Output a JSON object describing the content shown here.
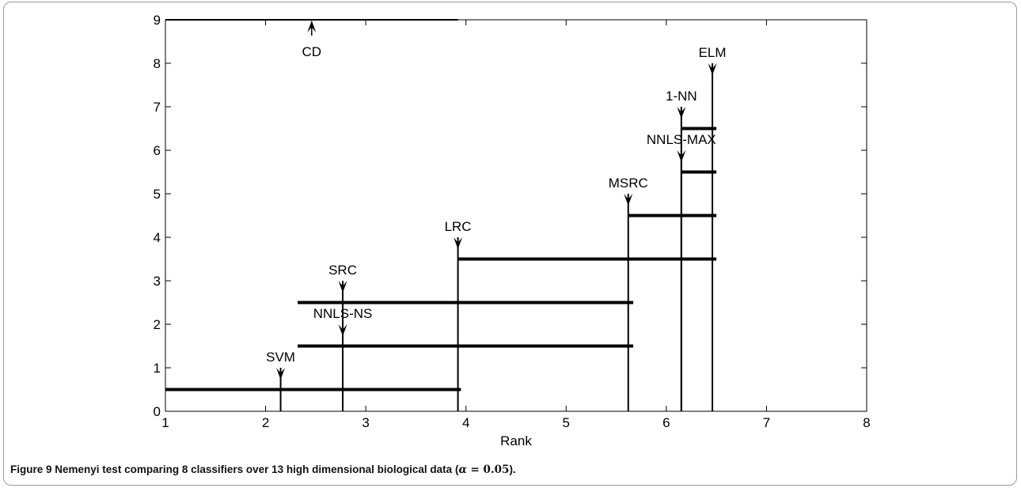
{
  "chart_data": {
    "type": "critical-difference",
    "xlabel": "Rank",
    "xlim": [
      1,
      8
    ],
    "ylim": [
      0,
      9
    ],
    "x_ticks": [
      1,
      2,
      3,
      4,
      5,
      6,
      7,
      8
    ],
    "y_ticks": [
      0,
      1,
      2,
      3,
      4,
      5,
      6,
      7,
      8,
      9
    ],
    "grid": false,
    "critical_difference": {
      "label": "CD",
      "x_start": 1.0,
      "x_end": 3.92,
      "y": 9
    },
    "classifiers": [
      {
        "name": "SVM",
        "rank": 2.15,
        "top": 1
      },
      {
        "name": "NNLS-NS",
        "rank": 2.77,
        "top": 2
      },
      {
        "name": "SRC",
        "rank": 2.77,
        "top": 3
      },
      {
        "name": "LRC",
        "rank": 3.92,
        "top": 4
      },
      {
        "name": "MSRC",
        "rank": 5.62,
        "top": 5
      },
      {
        "name": "NNLS-MAX",
        "rank": 6.15,
        "top": 6
      },
      {
        "name": "1-NN",
        "rank": 6.15,
        "top": 7
      },
      {
        "name": "ELM",
        "rank": 6.46,
        "top": 8
      }
    ],
    "cd_bars": [
      {
        "y": 0.5,
        "x_start": 1.0,
        "x_end": 3.95
      },
      {
        "y": 1.5,
        "x_start": 2.32,
        "x_end": 5.67
      },
      {
        "y": 2.5,
        "x_start": 2.32,
        "x_end": 5.67
      },
      {
        "y": 3.5,
        "x_start": 3.92,
        "x_end": 6.5
      },
      {
        "y": 4.5,
        "x_start": 5.62,
        "x_end": 6.5
      },
      {
        "y": 5.5,
        "x_start": 6.15,
        "x_end": 6.5
      },
      {
        "y": 6.5,
        "x_start": 6.15,
        "x_end": 6.5
      }
    ]
  },
  "caption": {
    "lead": "Figure 9",
    "text": "Nemenyi test comparing 8 classifiers over 13 high dimensional biological data (",
    "alpha_symbol": "α",
    "alpha_rel": " = ",
    "alpha_value": "0.05",
    "close": ")."
  }
}
